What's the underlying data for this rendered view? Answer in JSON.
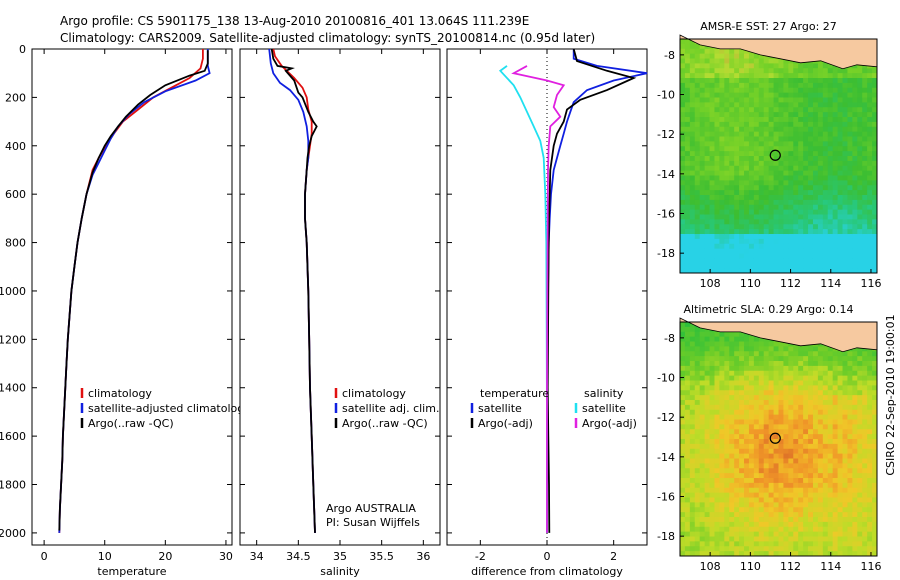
{
  "header": {
    "line1": "Argo profile: CS 5901175_138 13-Aug-2010 20100816_401 13.064S 111.239E",
    "line2": "Climatology: CARS2009. Satellite-adjusted climatology: synTS_20100814.nc (0.95d later)"
  },
  "side_note": "CSIRO 22-Sep-2010 19:00:01",
  "colors": {
    "climatology": "#e01010",
    "satellite": "#1020e0",
    "argo": "#000000",
    "cyan": "#20e0f0",
    "magenta": "#e020e0",
    "land": "#f6c9a0"
  },
  "chart_data": [
    {
      "type": "line",
      "xlabel": "temperature",
      "ylabel": "",
      "xlim": [
        -2,
        31
      ],
      "ylim": [
        2050,
        0
      ],
      "xticks": [
        0,
        10,
        20,
        30
      ],
      "yticks": [
        0,
        200,
        400,
        600,
        800,
        1000,
        1200,
        1400,
        1600,
        1800,
        2000
      ],
      "legend": {
        "position": "lower-right",
        "entries": [
          {
            "label": "climatology",
            "color": "#e01010"
          },
          {
            "label": "satellite-adjusted climatology",
            "color": "#1020e0"
          },
          {
            "label": "Argo(..raw -QC)",
            "color": "#000000"
          }
        ]
      },
      "series": [
        {
          "name": "climatology",
          "color": "#e01010",
          "points": [
            [
              26.2,
              0
            ],
            [
              26.2,
              40
            ],
            [
              25.8,
              80
            ],
            [
              24,
              120
            ],
            [
              21,
              160
            ],
            [
              18,
              200
            ],
            [
              15.5,
              250
            ],
            [
              13,
              300
            ],
            [
              11.5,
              350
            ],
            [
              10.2,
              400
            ],
            [
              9,
              450
            ],
            [
              8,
              500
            ],
            [
              7,
              600
            ],
            [
              6.2,
              700
            ],
            [
              5.5,
              800
            ],
            [
              5,
              900
            ],
            [
              4.5,
              1000
            ],
            [
              4.2,
              1100
            ],
            [
              3.9,
              1200
            ],
            [
              3.7,
              1300
            ],
            [
              3.5,
              1400
            ],
            [
              3.3,
              1500
            ],
            [
              3.1,
              1600
            ],
            [
              3,
              1700
            ],
            [
              2.8,
              1800
            ],
            [
              2.6,
              1900
            ],
            [
              2.5,
              2000
            ]
          ]
        },
        {
          "name": "satellite",
          "color": "#1020e0",
          "points": [
            [
              27,
              0
            ],
            [
              27,
              70
            ],
            [
              27.3,
              100
            ],
            [
              25,
              130
            ],
            [
              20,
              175
            ],
            [
              16.5,
              220
            ],
            [
              14,
              270
            ],
            [
              12.2,
              320
            ],
            [
              11,
              370
            ],
            [
              10,
              420
            ],
            [
              9,
              470
            ],
            [
              8,
              520
            ],
            [
              7,
              600
            ],
            [
              6.2,
              700
            ],
            [
              5.5,
              800
            ],
            [
              5,
              900
            ],
            [
              4.5,
              1000
            ],
            [
              4.2,
              1100
            ],
            [
              3.9,
              1200
            ],
            [
              3.7,
              1300
            ],
            [
              3.5,
              1400
            ],
            [
              3.3,
              1500
            ],
            [
              3.1,
              1600
            ],
            [
              3,
              1700
            ],
            [
              2.8,
              1800
            ],
            [
              2.6,
              1900
            ],
            [
              2.5,
              2000
            ]
          ]
        },
        {
          "name": "Argo",
          "color": "#000000",
          "points": [
            [
              27,
              5
            ],
            [
              27,
              60
            ],
            [
              26.5,
              90
            ],
            [
              24,
              110
            ],
            [
              20,
              150
            ],
            [
              17.5,
              190
            ],
            [
              15.5,
              230
            ],
            [
              13.5,
              280
            ],
            [
              12.2,
              320
            ],
            [
              11,
              360
            ],
            [
              10,
              400
            ],
            [
              9,
              450
            ],
            [
              8,
              510
            ],
            [
              7,
              600
            ],
            [
              6.2,
              700
            ],
            [
              5.5,
              800
            ],
            [
              5,
              900
            ],
            [
              4.5,
              1000
            ],
            [
              4.2,
              1100
            ],
            [
              3.9,
              1200
            ],
            [
              3.7,
              1300
            ],
            [
              3.5,
              1400
            ],
            [
              3.3,
              1500
            ],
            [
              3.1,
              1600
            ],
            [
              3,
              1700
            ],
            [
              2.8,
              1800
            ],
            [
              2.6,
              1900
            ],
            [
              2.5,
              1990
            ]
          ]
        }
      ]
    },
    {
      "type": "line",
      "xlabel": "salinity",
      "xlim": [
        33.8,
        36.2
      ],
      "ylim": [
        2050,
        0
      ],
      "xticks": [
        34,
        34.5,
        35,
        35.5,
        36
      ],
      "legend": {
        "position": "lower-right",
        "entries": [
          {
            "label": "climatology",
            "color": "#e01010"
          },
          {
            "label": "satellite adj. clim.",
            "color": "#1020e0"
          },
          {
            "label": "Argo(..raw -QC)",
            "color": "#000000"
          }
        ]
      },
      "annotations": [
        "Argo AUSTRALIA",
        "PI: Susan Wijffels"
      ],
      "series": [
        {
          "name": "climatology",
          "color": "#e01010",
          "points": [
            [
              34.2,
              0
            ],
            [
              34.22,
              30
            ],
            [
              34.3,
              70
            ],
            [
              34.45,
              120
            ],
            [
              34.55,
              160
            ],
            [
              34.6,
              200
            ],
            [
              34.62,
              250
            ],
            [
              34.66,
              300
            ],
            [
              34.66,
              350
            ],
            [
              34.64,
              400
            ],
            [
              34.62,
              450
            ],
            [
              34.6,
              500
            ],
            [
              34.58,
              600
            ],
            [
              34.58,
              700
            ],
            [
              34.6,
              800
            ],
            [
              34.61,
              900
            ],
            [
              34.62,
              1000
            ],
            [
              34.63,
              1200
            ],
            [
              34.64,
              1400
            ],
            [
              34.66,
              1600
            ],
            [
              34.68,
              1800
            ],
            [
              34.7,
              2000
            ]
          ]
        },
        {
          "name": "satellite",
          "color": "#1020e0",
          "points": [
            [
              34.15,
              0
            ],
            [
              34.17,
              60
            ],
            [
              34.2,
              100
            ],
            [
              34.28,
              140
            ],
            [
              34.4,
              170
            ],
            [
              34.5,
              210
            ],
            [
              34.56,
              260
            ],
            [
              34.6,
              320
            ],
            [
              34.62,
              380
            ],
            [
              34.62,
              450
            ],
            [
              34.6,
              500
            ],
            [
              34.58,
              600
            ],
            [
              34.58,
              700
            ],
            [
              34.6,
              800
            ],
            [
              34.61,
              900
            ],
            [
              34.62,
              1000
            ],
            [
              34.63,
              1200
            ],
            [
              34.64,
              1400
            ],
            [
              34.66,
              1600
            ],
            [
              34.68,
              1800
            ],
            [
              34.7,
              2000
            ]
          ]
        },
        {
          "name": "Argo",
          "color": "#000000",
          "points": [
            [
              34.18,
              0
            ],
            [
              34.2,
              40
            ],
            [
              34.25,
              70
            ],
            [
              34.42,
              80
            ],
            [
              34.35,
              90
            ],
            [
              34.45,
              130
            ],
            [
              34.5,
              180
            ],
            [
              34.55,
              200
            ],
            [
              34.62,
              260
            ],
            [
              34.68,
              300
            ],
            [
              34.72,
              320
            ],
            [
              34.66,
              360
            ],
            [
              34.63,
              400
            ],
            [
              34.61,
              450
            ],
            [
              34.6,
              500
            ],
            [
              34.58,
              600
            ],
            [
              34.58,
              700
            ],
            [
              34.6,
              800
            ],
            [
              34.61,
              900
            ],
            [
              34.62,
              1000
            ],
            [
              34.63,
              1200
            ],
            [
              34.64,
              1400
            ],
            [
              34.66,
              1600
            ],
            [
              34.68,
              1800
            ],
            [
              34.7,
              2000
            ]
          ]
        }
      ]
    },
    {
      "type": "line",
      "xlabel": "difference from climatology",
      "xlim": [
        -3,
        3
      ],
      "ylim": [
        2050,
        0
      ],
      "xticks": [
        -2,
        0,
        2
      ],
      "legend": {
        "position": "lower",
        "entries": [
          {
            "label": "temperature",
            "color": ""
          },
          {
            "label": "satellite",
            "color": "#1020e0"
          },
          {
            "label": "Argo(-adj)",
            "color": "#000000"
          },
          {
            "label": "salinity",
            "color": ""
          },
          {
            "label": "satellite",
            "color": "#20e0f0"
          },
          {
            "label": "Argo(-adj)",
            "color": "#e020e0"
          }
        ]
      },
      "series": [
        {
          "name": "temperature satellite",
          "color": "#1020e0",
          "points": [
            [
              0.8,
              0
            ],
            [
              0.8,
              40
            ],
            [
              1.5,
              70
            ],
            [
              3,
              100
            ],
            [
              2,
              130
            ],
            [
              1.2,
              170
            ],
            [
              0.8,
              220
            ],
            [
              0.7,
              260
            ],
            [
              0.6,
              300
            ],
            [
              0.5,
              350
            ],
            [
              0.4,
              400
            ],
            [
              0.3,
              450
            ],
            [
              0.2,
              500
            ],
            [
              0.12,
              600
            ],
            [
              0.08,
              700
            ],
            [
              0.05,
              800
            ],
            [
              0.03,
              1000
            ],
            [
              0.02,
              1200
            ],
            [
              0.01,
              1400
            ],
            [
              0,
              1600
            ],
            [
              0,
              1800
            ],
            [
              0,
              2000
            ]
          ]
        },
        {
          "name": "temperature Argo(-adj)",
          "color": "#000000",
          "points": [
            [
              0.8,
              0
            ],
            [
              0.9,
              50
            ],
            [
              1.8,
              90
            ],
            [
              2.6,
              120
            ],
            [
              1.8,
              170
            ],
            [
              1,
              210
            ],
            [
              0.6,
              250
            ],
            [
              0.5,
              300
            ],
            [
              0.3,
              350
            ],
            [
              0.2,
              400
            ],
            [
              0.15,
              450
            ],
            [
              0.1,
              500
            ],
            [
              0.08,
              600
            ],
            [
              0.06,
              700
            ],
            [
              0.05,
              800
            ],
            [
              0.04,
              1000
            ],
            [
              0.03,
              1200
            ],
            [
              0.02,
              1400
            ],
            [
              0.04,
              1600
            ],
            [
              0.06,
              1800
            ],
            [
              0.07,
              2000
            ]
          ]
        },
        {
          "name": "salinity satellite",
          "color": "#20e0f0",
          "points": [
            [
              -1.2,
              70
            ],
            [
              -1.4,
              90
            ],
            [
              -1.0,
              150
            ],
            [
              -0.8,
              200
            ],
            [
              -0.6,
              260
            ],
            [
              -0.4,
              320
            ],
            [
              -0.2,
              380
            ],
            [
              -0.1,
              450
            ],
            [
              -0.05,
              600
            ],
            [
              -0.02,
              800
            ],
            [
              -0.01,
              1200
            ],
            [
              0,
              1600
            ],
            [
              0,
              2000
            ]
          ]
        },
        {
          "name": "salinity Argo(-adj)",
          "color": "#e020e0",
          "points": [
            [
              -0.6,
              70
            ],
            [
              -1.0,
              100
            ],
            [
              0,
              130
            ],
            [
              0.5,
              150
            ],
            [
              0.3,
              190
            ],
            [
              0.2,
              240
            ],
            [
              0.4,
              280
            ],
            [
              0.1,
              320
            ],
            [
              0.05,
              400
            ],
            [
              0.03,
              500
            ],
            [
              0.02,
              700
            ],
            [
              0.01,
              1000
            ],
            [
              0,
              1400
            ],
            [
              0,
              2000
            ]
          ]
        }
      ]
    },
    {
      "type": "heatmap",
      "title": "AMSR-E SST: 27 Argo: 27",
      "xlim": [
        106.5,
        116.3
      ],
      "ylim": [
        -19,
        -7.2
      ],
      "xticks": [
        108,
        110,
        112,
        114,
        116
      ],
      "yticks": [
        -8,
        -10,
        -12,
        -14,
        -16,
        -18
      ],
      "marker": {
        "lon": 111.239,
        "lat": -13.064
      }
    },
    {
      "type": "heatmap",
      "title": "Altimetric SLA: 0.29 Argo: 0.14",
      "xlim": [
        106.5,
        116.3
      ],
      "ylim": [
        -19,
        -7.2
      ],
      "xticks": [
        108,
        110,
        112,
        114,
        116
      ],
      "yticks": [
        -8,
        -10,
        -12,
        -14,
        -16,
        -18
      ],
      "marker": {
        "lon": 111.239,
        "lat": -13.064
      }
    }
  ]
}
